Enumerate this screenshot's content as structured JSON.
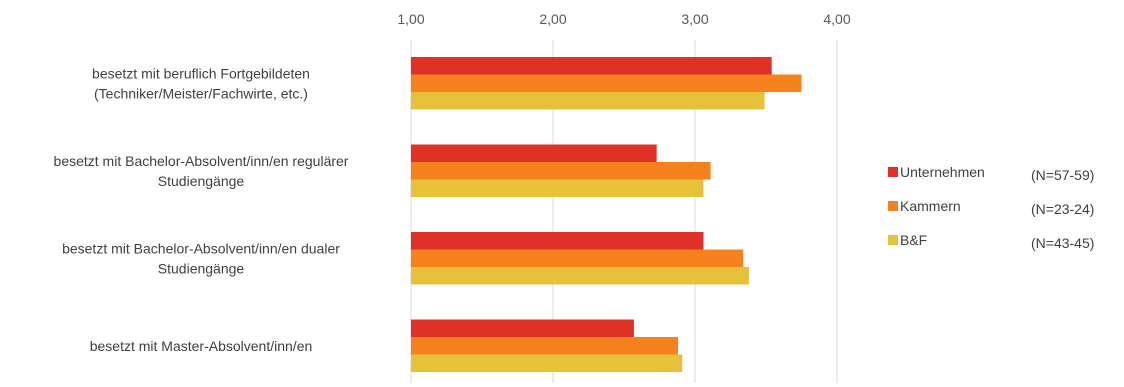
{
  "chart_data": {
    "type": "bar",
    "orientation": "horizontal",
    "categories": [
      [
        "besetzt mit beruflich Fortgebildeten",
        "(Techniker/Meister/Fachwirte, etc.)"
      ],
      [
        "besetzt mit Bachelor-Absolvent/inn/en regulärer",
        "Studiengänge"
      ],
      [
        "besetzt mit Bachelor-Absolvent/inn/en dualer",
        "Studiengänge"
      ],
      [
        "besetzt mit Master-Absolvent/inn/en"
      ]
    ],
    "series": [
      {
        "name": "Unternehmen",
        "note": "(N=57-59)",
        "color": "#E03127",
        "values": [
          3.54,
          2.73,
          3.06,
          2.57
        ]
      },
      {
        "name": "Kammern",
        "note": "(N=23-24)",
        "color": "#F5821F",
        "values": [
          3.75,
          3.11,
          3.34,
          2.88
        ]
      },
      {
        "name": "B&F",
        "note": "(N=43-45)",
        "color": "#E8C13B",
        "values": [
          3.49,
          3.06,
          3.38,
          2.91
        ]
      }
    ],
    "xlim": [
      1,
      4
    ],
    "x_ticks": [
      "1,00",
      "2,00",
      "3,00",
      "4,00"
    ],
    "grid": true,
    "legend_position": "right",
    "title": "",
    "xlabel": "",
    "ylabel": ""
  }
}
